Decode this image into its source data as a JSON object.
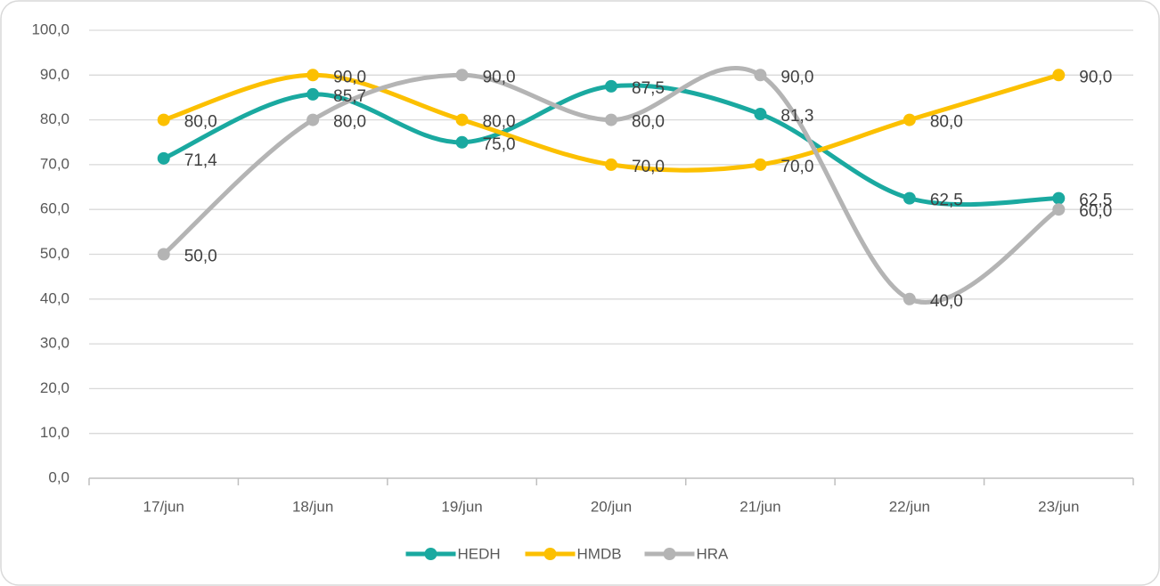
{
  "chart_data": {
    "type": "line",
    "categories": [
      "17/jun",
      "18/jun",
      "19/jun",
      "20/jun",
      "21/jun",
      "22/jun",
      "23/jun"
    ],
    "series": [
      {
        "name": "HEDH",
        "color": "#1aa9a0",
        "values": [
          71.4,
          85.7,
          75.0,
          87.5,
          81.3,
          62.5,
          62.5
        ],
        "value_labels": [
          "71,4",
          "85,7",
          "75,0",
          "87,5",
          "81,3",
          "62,5",
          "62,5"
        ]
      },
      {
        "name": "HMDB",
        "color": "#fcc000",
        "values": [
          80,
          90,
          80,
          70,
          70,
          80,
          90
        ],
        "value_labels": [
          "80,0",
          "90,0",
          "80,0",
          "70,0",
          "70,0",
          "80,0",
          "90,0"
        ]
      },
      {
        "name": "HRA",
        "color": "#b4b4b4",
        "values": [
          50,
          80,
          90,
          80,
          90,
          40,
          60
        ],
        "value_labels": [
          "50,0",
          "80,0",
          "90,0",
          "80,0",
          "90,0",
          "40,0",
          "60,0"
        ]
      }
    ],
    "ylim": [
      0,
      100
    ],
    "yticks": [
      {
        "value": 0,
        "label": "0,0"
      },
      {
        "value": 10,
        "label": "10,0"
      },
      {
        "value": 20,
        "label": "20,0"
      },
      {
        "value": 30,
        "label": "30,0"
      },
      {
        "value": 40,
        "label": "40,0"
      },
      {
        "value": 50,
        "label": "50,0"
      },
      {
        "value": 60,
        "label": "60,0"
      },
      {
        "value": 70,
        "label": "70,0"
      },
      {
        "value": 80,
        "label": "80,0"
      },
      {
        "value": 90,
        "label": "90,0"
      },
      {
        "value": 100,
        "label": "100,0"
      }
    ],
    "grid": true,
    "smooth": true,
    "legend": "bottom"
  }
}
